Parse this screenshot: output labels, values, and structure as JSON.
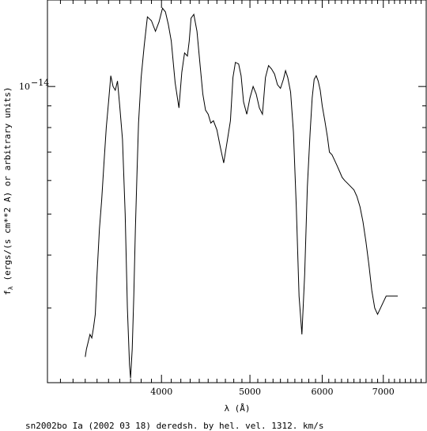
{
  "chart_data": {
    "type": "line",
    "title": "",
    "xlabel": "λ (Å)",
    "ylabel": "fλ (ergs/(s cm**2 A) or arbitrary units)",
    "ylabel_main": "f",
    "ylabel_sub": "λ",
    "ylabel_rest": " (ergs/(s cm**2 A) or arbitrary units)",
    "caption": "sn2002bo Ia (2002 03 18) deredsh. by hel. vel.  1312. km/s",
    "x_scale": "log",
    "y_scale": "log",
    "xlim": [
      3000,
      7800
    ],
    "ylim": [
      2e-15,
      1.6e-14
    ],
    "x_ticks": [
      {
        "value": 4000,
        "label": "4000"
      },
      {
        "value": 5000,
        "label": "5000"
      },
      {
        "value": 6000,
        "label": "6000"
      },
      {
        "value": 7000,
        "label": "7000"
      }
    ],
    "x_minor_ticks": [
      3100,
      3200,
      3300,
      3400,
      3500,
      3600,
      3700,
      3800,
      3900,
      4100,
      4200,
      4300,
      4400,
      4500,
      4600,
      4700,
      4800,
      4900,
      5100,
      5200,
      5300,
      5400,
      5500,
      5600,
      5700,
      5800,
      5900,
      6100,
      6200,
      6300,
      6400,
      6500,
      6600,
      6700,
      6800,
      6900,
      7100,
      7200,
      7300,
      7400,
      7500,
      7600,
      7700
    ],
    "y_ticks": [
      {
        "value": 1e-14,
        "label_base": "10",
        "label_exp": "−14"
      }
    ],
    "y_minor_ticks": [
      2e-15,
      3e-15,
      4e-15,
      5e-15,
      6e-15,
      7e-15,
      8e-15,
      9e-15
    ],
    "grid": false,
    "series": [
      {
        "values_x": [
          3300,
          3310,
          3325,
          3340,
          3355,
          3370,
          3385,
          3400,
          3420,
          3440,
          3460,
          3480,
          3500,
          3520,
          3540,
          3560,
          3580,
          3600,
          3625,
          3650,
          3670,
          3690,
          3700,
          3715,
          3730,
          3745,
          3760,
          3775,
          3800,
          3830,
          3860,
          3900,
          3940,
          3975,
          4010,
          4040,
          4070,
          4100,
          4140,
          4180,
          4210,
          4240,
          4270,
          4290,
          4310,
          4340,
          4375,
          4410,
          4440,
          4470,
          4500,
          4530,
          4560,
          4600,
          4640,
          4680,
          4720,
          4760,
          4790,
          4820,
          4860,
          4890,
          4920,
          4960,
          5000,
          5040,
          5080,
          5120,
          5160,
          5200,
          5240,
          5280,
          5320,
          5360,
          5400,
          5440,
          5470,
          5500,
          5540,
          5580,
          5620,
          5660,
          5700,
          5740,
          5780,
          5820,
          5850,
          5880,
          5910,
          5940,
          5970,
          6000,
          6040,
          6080,
          6110,
          6150,
          6190,
          6230,
          6270,
          6310,
          6350,
          6400,
          6450,
          6500,
          6550,
          6600,
          6650,
          6700,
          6750,
          6800,
          6850,
          6900,
          6950,
          7000,
          7050,
          7100,
          7150,
          7200,
          7230,
          7260
        ],
        "values_y": [
          2.3e-15,
          2.4e-15,
          2.5e-15,
          2.6e-15,
          2.55e-15,
          2.7e-15,
          2.9e-15,
          3.6e-15,
          4.6e-15,
          5.4e-15,
          6.6e-15,
          8e-15,
          9.2e-15,
          1.06e-14,
          1e-14,
          9.8e-15,
          1.03e-14,
          9e-15,
          7.5e-15,
          5e-15,
          3e-15,
          2.2e-15,
          2.05e-15,
          2.4e-15,
          3.2e-15,
          4.6e-15,
          6.2e-15,
          8.2e-15,
          1.05e-14,
          1.25e-14,
          1.46e-14,
          1.43e-14,
          1.35e-14,
          1.42e-14,
          1.53e-14,
          1.5e-14,
          1.4e-14,
          1.28e-14,
          1.02e-14,
          8.9e-15,
          1.08e-14,
          1.2e-14,
          1.18e-14,
          1.28e-14,
          1.45e-14,
          1.48e-14,
          1.35e-14,
          1.12e-14,
          9.6e-15,
          8.8e-15,
          8.6e-15,
          8.2e-15,
          8.3e-15,
          7.9e-15,
          7.2e-15,
          6.6e-15,
          7.4e-15,
          8.3e-15,
          1.05e-14,
          1.14e-14,
          1.13e-14,
          1.06e-14,
          9.2e-15,
          8.6e-15,
          9.4e-15,
          1e-14,
          9.6e-15,
          8.9e-15,
          8.6e-15,
          1.05e-14,
          1.12e-14,
          1.1e-14,
          1.07e-14,
          1.01e-14,
          9.9e-15,
          1.04e-14,
          1.09e-14,
          1.05e-14,
          9.7e-15,
          7.8e-15,
          5.2e-15,
          3.2e-15,
          2.6e-15,
          3.6e-15,
          5.8e-15,
          7.8e-15,
          9.4e-15,
          1.04e-14,
          1.06e-14,
          1.03e-14,
          9.8e-15,
          9e-15,
          8.3e-15,
          7.6e-15,
          7e-15,
          6.9e-15,
          6.7e-15,
          6.5e-15,
          6.3e-15,
          6.1e-15,
          6e-15,
          5.9e-15,
          5.8e-15,
          5.7e-15,
          5.5e-15,
          5.2e-15,
          4.8e-15,
          4.3e-15,
          3.8e-15,
          3.3e-15,
          3e-15,
          2.9e-15,
          3e-15,
          3.1e-15,
          3.2e-15,
          3.2e-15,
          3.2e-15,
          3.2e-15,
          3.2e-15,
          3.2e-15
        ]
      }
    ]
  }
}
